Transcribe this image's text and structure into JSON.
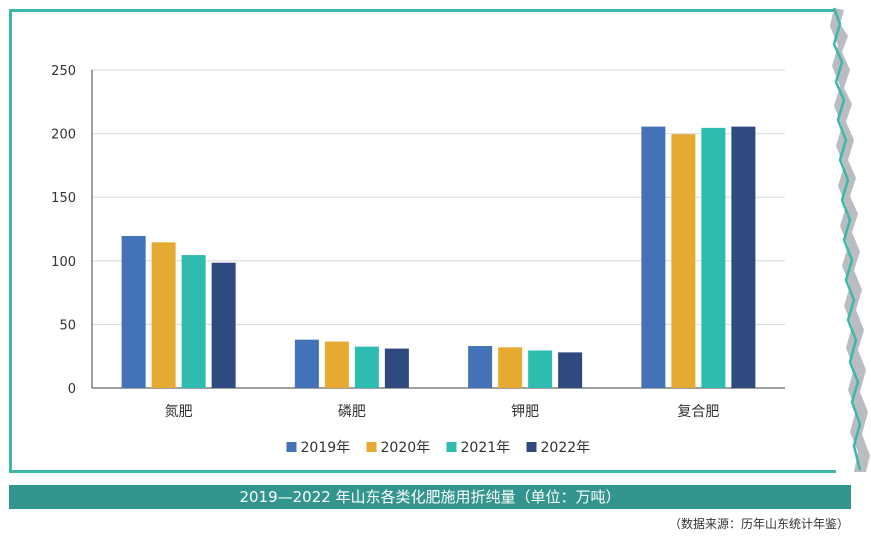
{
  "chart_data": {
    "type": "bar",
    "title": "2019—2022 年山东各类化肥施用折纯量（单位：万吨）",
    "categories": [
      "氮肥",
      "磷肥",
      "钾肥",
      "复合肥"
    ],
    "series": [
      {
        "name": "2019年",
        "color": "#4472b8",
        "values": [
          119.5,
          38,
          33,
          205.5
        ]
      },
      {
        "name": "2020年",
        "color": "#e6aa33",
        "values": [
          114.5,
          36.5,
          32,
          199.5
        ]
      },
      {
        "name": "2021年",
        "color": "#2ebbb0",
        "values": [
          104.5,
          32.5,
          29.5,
          204.5
        ]
      },
      {
        "name": "2022年",
        "color": "#2f4a7f",
        "values": [
          98.5,
          31,
          28,
          205.5
        ]
      }
    ],
    "ylim": [
      0,
      250
    ],
    "yticks": [
      0,
      50,
      100,
      150,
      200,
      250
    ],
    "grid": true,
    "legend_position": "bottom"
  },
  "source": "（数据来源：历年山东统计年鉴）"
}
